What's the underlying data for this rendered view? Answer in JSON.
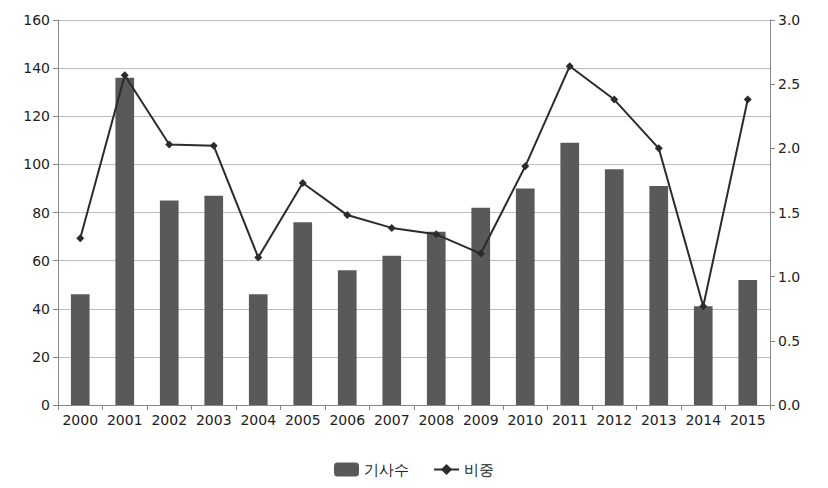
{
  "chart_data": {
    "type": "bar",
    "categories": [
      "2000",
      "2001",
      "2002",
      "2003",
      "2004",
      "2005",
      "2006",
      "2007",
      "2008",
      "2009",
      "2010",
      "2011",
      "2012",
      "2013",
      "2014",
      "2015"
    ],
    "series": [
      {
        "name": "기사수",
        "type": "bar",
        "color": "#595959",
        "values": [
          46,
          136,
          85,
          87,
          46,
          76,
          56,
          62,
          72,
          82,
          90,
          109,
          98,
          91,
          41,
          52
        ]
      },
      {
        "name": "비중",
        "type": "line",
        "axis": "y2",
        "color": "#2b2b2b",
        "marker": "diamond",
        "values": [
          1.3,
          2.57,
          2.03,
          2.02,
          1.15,
          1.73,
          1.48,
          1.38,
          1.33,
          1.18,
          1.86,
          2.64,
          2.38,
          2.0,
          0.77,
          2.38
        ]
      }
    ],
    "ylim": [
      0,
      160
    ],
    "yticks": [
      0,
      20,
      40,
      60,
      80,
      100,
      120,
      140,
      160
    ],
    "y2lim": [
      0,
      3
    ],
    "y2ticks": [
      {
        "value": 0,
        "label": "0.0"
      },
      0.5,
      {
        "value": 1,
        "label": "1.0"
      },
      1.5,
      {
        "value": 2,
        "label": "2.0"
      },
      2.5,
      {
        "value": 3,
        "label": "3.0"
      }
    ],
    "grid": true,
    "legend": "bottom"
  }
}
